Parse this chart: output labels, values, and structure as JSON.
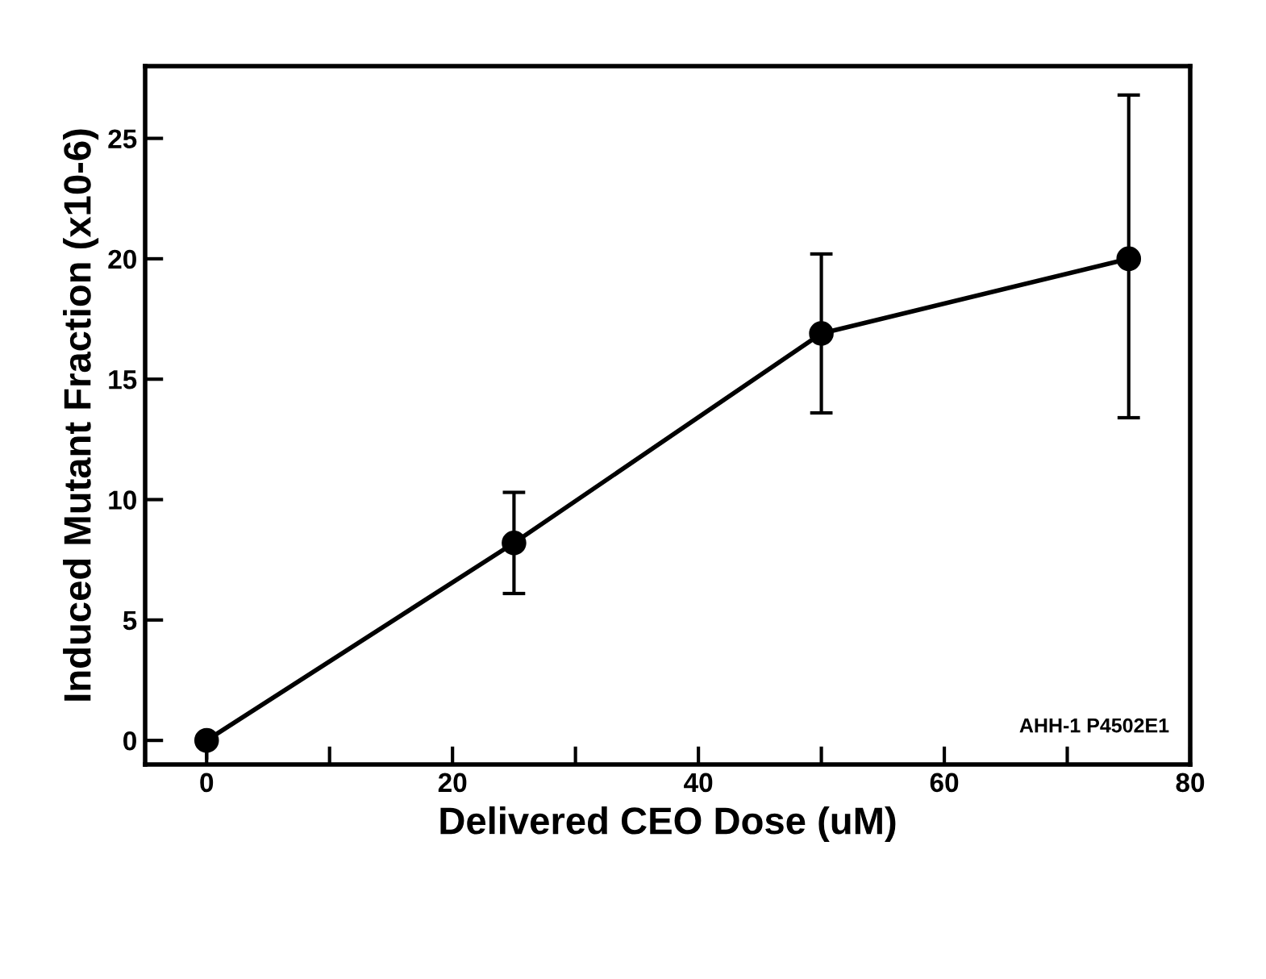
{
  "chart_data": {
    "type": "line",
    "xlabel": "Delivered CEO Dose (uM)",
    "ylabel": "Induced Mutant Fraction (x10-6)",
    "x": [
      0,
      25,
      50,
      75
    ],
    "series": [
      {
        "color": "#000000",
        "values": [
          0,
          8.2,
          16.9,
          20.0
        ],
        "errors": [
          [
            -0.8,
            0
          ],
          [
            6.1,
            10.3
          ],
          [
            13.6,
            20.2
          ],
          [
            13.4,
            26.8
          ]
        ]
      }
    ],
    "xlim": [
      -5,
      80
    ],
    "ylim": [
      -1,
      28
    ],
    "xticks": [
      0,
      {
        "value": 10,
        "label": null
      },
      20,
      {
        "value": 30,
        "label": null
      },
      40,
      {
        "value": 50,
        "label": null
      },
      60,
      {
        "value": 70,
        "label": null
      },
      80
    ],
    "yticks": [
      0,
      5,
      10,
      15,
      20,
      25
    ],
    "annotations": [
      "AHH-1 P4502E1"
    ],
    "marker": "circle",
    "line_style": "solid",
    "grid": false,
    "legend": false
  }
}
